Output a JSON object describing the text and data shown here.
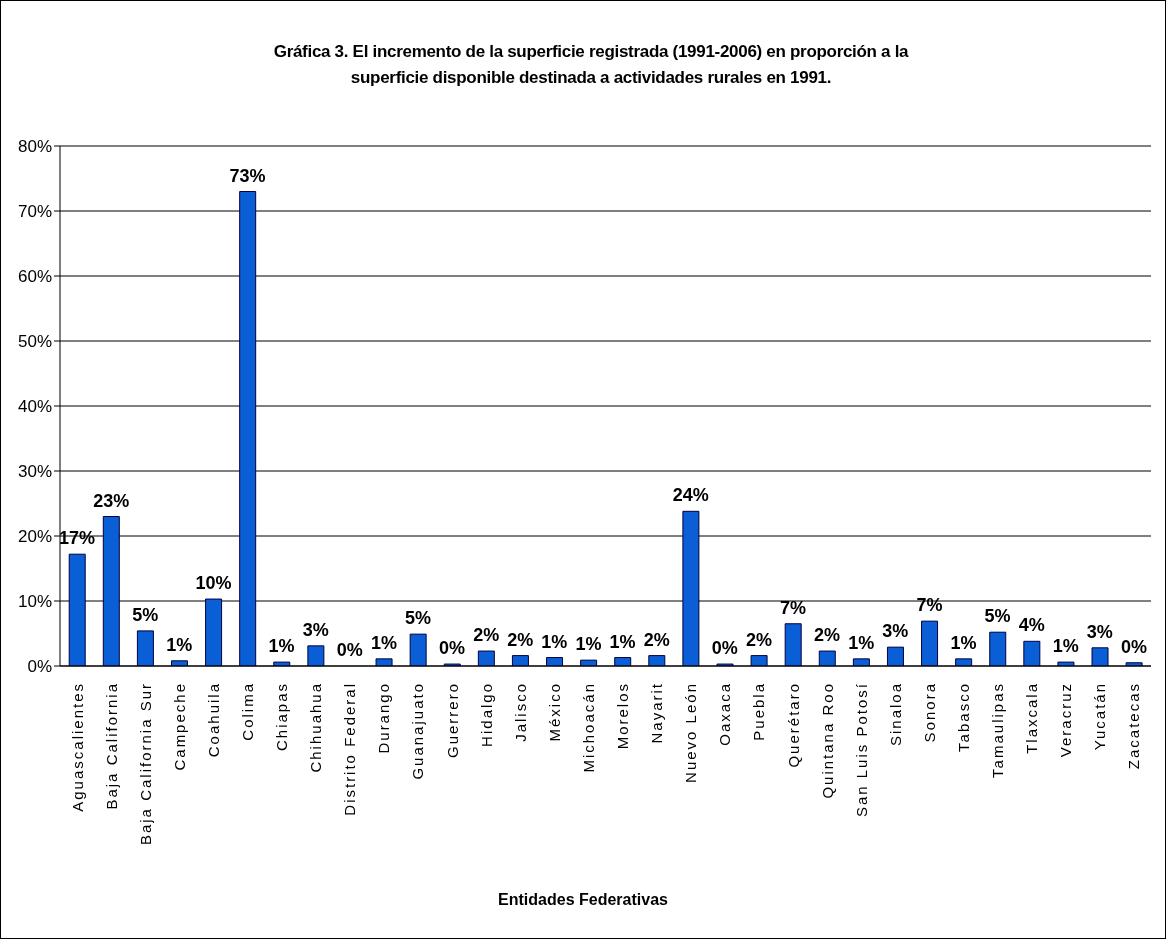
{
  "chart_data": {
    "type": "bar",
    "title": "Gráfica 3. El incremento de la superficie registrada (1991-2006) en proporción a la superficie disponible destinada a actividades rurales en 1991.",
    "xlabel": "Entidades Federativas",
    "categories": [
      "Aguascalientes",
      "Baja California",
      "Baja California Sur",
      "Campeche",
      "Coahuila",
      "Colima",
      "Chiapas",
      "Chihuahua",
      "Distrito Federal",
      "Durango",
      "Guanajuato",
      "Guerrero",
      "Hidalgo",
      "Jalisco",
      "México",
      "Michoacán",
      "Morelos",
      "Nayarit",
      "Nuevo León",
      "Oaxaca",
      "Puebla",
      "Querétaro",
      "Quintana Roo",
      "San Luis Potosí",
      "Sinaloa",
      "Sonora",
      "Tabasco",
      "Tamaulipas",
      "Tlaxcala",
      "Veracruz",
      "Yucatán",
      "Zacatecas"
    ],
    "values": [
      17.2,
      23,
      5.4,
      0.8,
      10.3,
      73,
      0.6,
      3.1,
      0,
      1.1,
      4.9,
      0.3,
      2.3,
      1.6,
      1.3,
      0.9,
      1.3,
      1.6,
      23.8,
      0.3,
      1.6,
      6.5,
      2.3,
      1.1,
      2.9,
      6.9,
      1.1,
      5.2,
      3.8,
      0.6,
      2.8,
      0.5
    ],
    "value_labels": [
      "17%",
      "23%",
      "5%",
      "1%",
      "10%",
      "73%",
      "1%",
      "3%",
      "0%",
      "1%",
      "5%",
      "0%",
      "2%",
      "2%",
      "1%",
      "1%",
      "1%",
      "2%",
      "24%",
      "0%",
      "2%",
      "7%",
      "2%",
      "1%",
      "3%",
      "7%",
      "1%",
      "5%",
      "4%",
      "1%",
      "3%",
      "0%"
    ],
    "color": "#0b5fd6",
    "ylim": [
      0,
      80
    ],
    "yticks": [
      {
        "value": 0,
        "label": "0%"
      },
      {
        "value": 10,
        "label": "10%"
      },
      {
        "value": 20,
        "label": "20%"
      },
      {
        "value": 30,
        "label": "30%"
      },
      {
        "value": 40,
        "label": "40%"
      },
      {
        "value": 50,
        "label": "50%"
      },
      {
        "value": 60,
        "label": "60%"
      },
      {
        "value": 70,
        "label": "70%"
      },
      {
        "value": 80,
        "label": "80%"
      }
    ],
    "grid": "y",
    "legend": false
  }
}
